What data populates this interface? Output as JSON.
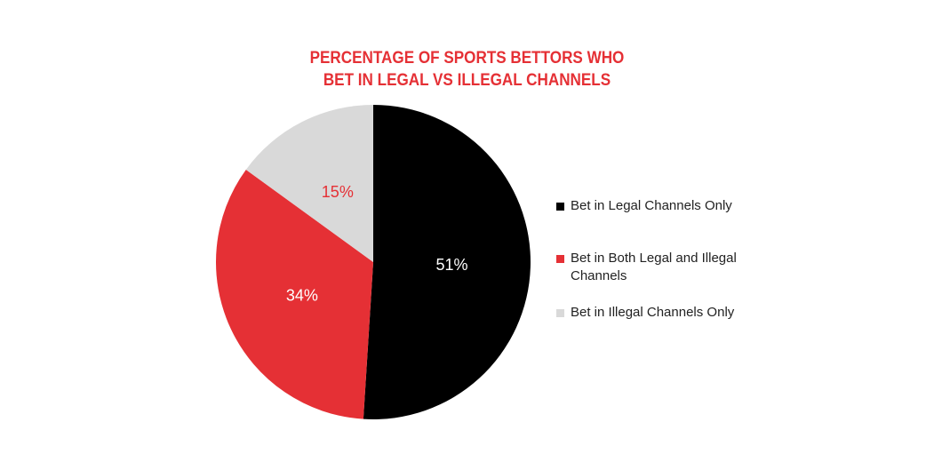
{
  "chart_data": {
    "type": "pie",
    "title": [
      "PERCENTAGE OF SPORTS BETTORS WHO",
      "BET IN LEGAL VS ILLEGAL CHANNELS"
    ],
    "start_angle": "top",
    "direction": "clockwise",
    "legend_placement": "right",
    "slices": [
      {
        "label": "Bet in Legal Channels Only",
        "value": 51,
        "display": "51%",
        "color": "#000000",
        "label_color": "#ffffff"
      },
      {
        "label": "Bet in Both Legal and Illegal Channels",
        "value": 34,
        "display": "34%",
        "color": "#e53035",
        "label_color": "#ffffff"
      },
      {
        "label": "Bet in Illegal Channels Only",
        "value": 15,
        "display": "15%",
        "color": "#d9d9d9",
        "label_color": "#e53035"
      }
    ]
  }
}
